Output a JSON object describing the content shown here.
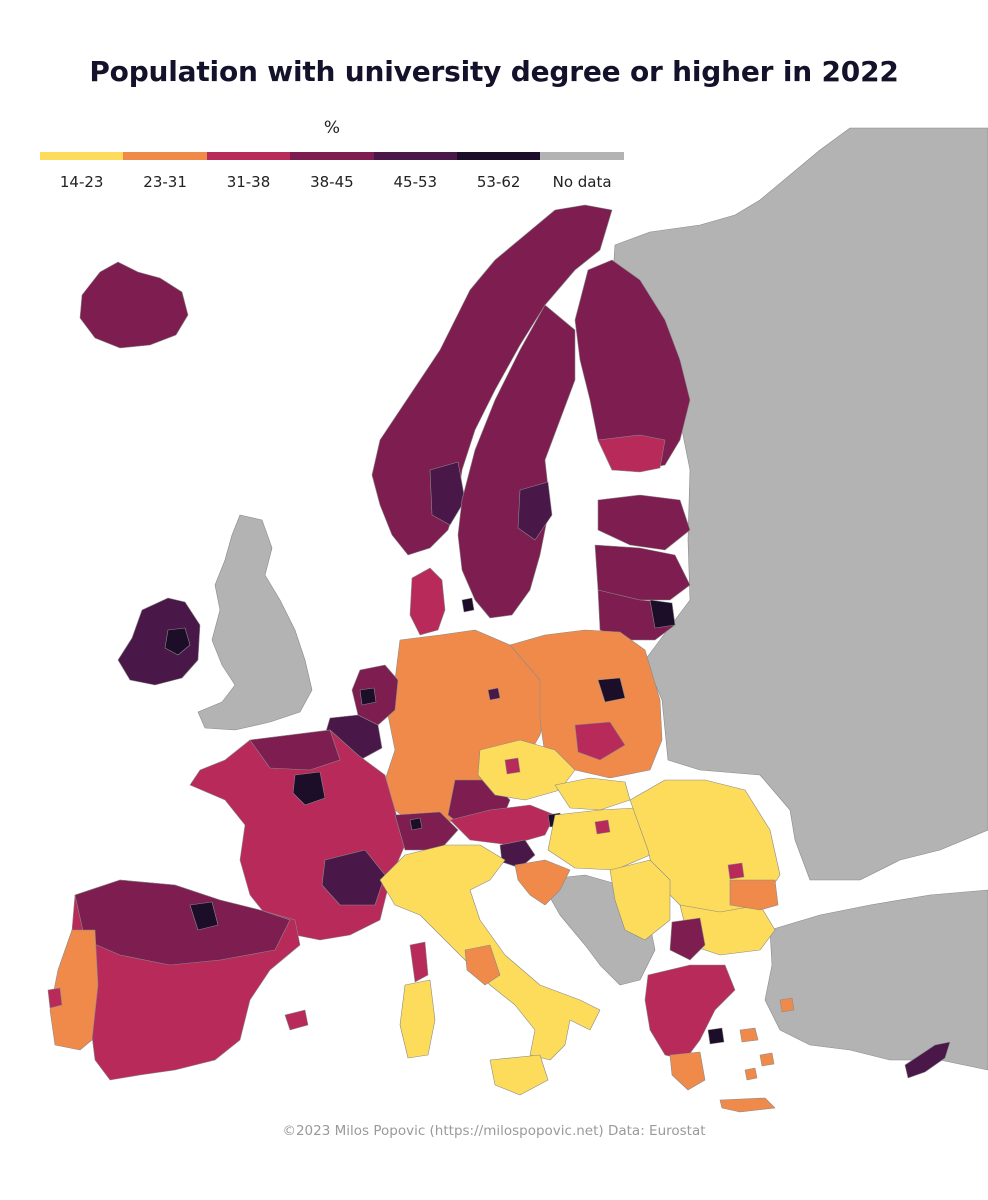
{
  "title": "Population with university degree or higher in 2022",
  "legend": {
    "unit": "%",
    "classes": [
      {
        "label": "14-23",
        "color": "#fddc5c"
      },
      {
        "label": "23-31",
        "color": "#f08a4b"
      },
      {
        "label": "31-38",
        "color": "#b82a5a"
      },
      {
        "label": "38-45",
        "color": "#7e1d4f"
      },
      {
        "label": "45-53",
        "color": "#4a1848"
      },
      {
        "label": "53-62",
        "color": "#1c0d28"
      },
      {
        "label": "No data",
        "color": "#b3b3b3"
      }
    ]
  },
  "credit": "©2023 Milos Popovic (https://milospopovic.net) Data: Eurostat",
  "colors": {
    "border": "#8a8a8a",
    "background": "#ffffff"
  }
}
